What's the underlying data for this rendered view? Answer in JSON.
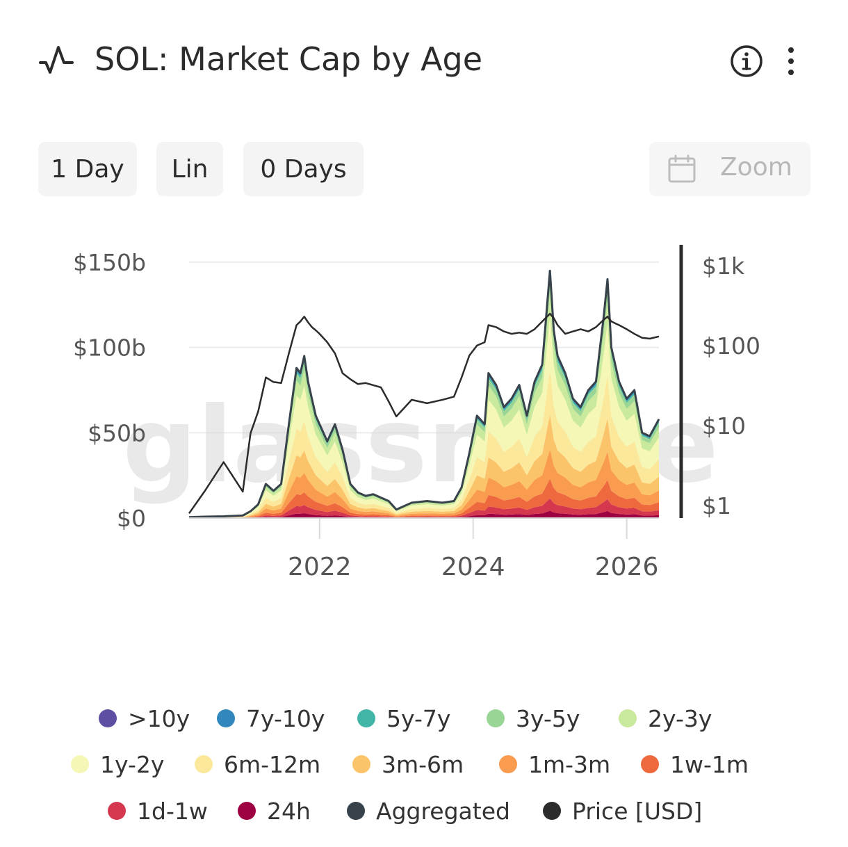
{
  "header": {
    "title": "SOL: Market Cap by Age",
    "icons": [
      "pulse-icon",
      "info-icon",
      "more-vertical-icon"
    ]
  },
  "toolbar": {
    "resolution": "1 Day",
    "scale": "Lin",
    "moving_average": "0 Days",
    "zoom_label": "Zoom",
    "zoom_icon": "calendar-icon"
  },
  "chart_data": {
    "type": "area",
    "title": "SOL: Market Cap by Age",
    "x_ticks": [
      "2022",
      "2024",
      "2026"
    ],
    "xlim": [
      2020.3,
      2026.42
    ],
    "y_left": {
      "label": "",
      "ticks": [
        "$0",
        "$50b",
        "$100b",
        "$150b"
      ],
      "tick_values": [
        0,
        50,
        100,
        150
      ],
      "ylim": [
        0,
        150
      ],
      "unit": "USD billions"
    },
    "y_right": {
      "label": "",
      "scale": "log",
      "ticks": [
        "$1",
        "$10",
        "$100",
        "$1k"
      ],
      "tick_values": [
        1,
        10,
        100,
        1000
      ],
      "ylim": [
        0.7,
        1100
      ]
    },
    "grid": true,
    "stacked": true,
    "watermark": "glassnode",
    "x": [
      2020.3,
      2020.5,
      2020.75,
      2021.0,
      2021.1,
      2021.2,
      2021.3,
      2021.4,
      2021.5,
      2021.6,
      2021.7,
      2021.75,
      2021.8,
      2021.85,
      2021.9,
      2021.95,
      2022.0,
      2022.1,
      2022.2,
      2022.3,
      2022.4,
      2022.5,
      2022.6,
      2022.7,
      2022.8,
      2022.9,
      2023.0,
      2023.2,
      2023.4,
      2023.6,
      2023.75,
      2023.85,
      2023.95,
      2024.05,
      2024.15,
      2024.2,
      2024.3,
      2024.4,
      2024.5,
      2024.6,
      2024.7,
      2024.8,
      2024.9,
      2025.0,
      2025.05,
      2025.1,
      2025.2,
      2025.3,
      2025.4,
      2025.5,
      2025.6,
      2025.7,
      2025.75,
      2025.8,
      2025.9,
      2026.0,
      2026.1,
      2026.2,
      2026.3,
      2026.42
    ],
    "series": [
      {
        "name": "Aggregated",
        "values": [
          0.5,
          0.8,
          1.0,
          1.5,
          4,
          8,
          20,
          16,
          20,
          55,
          88,
          85,
          95,
          80,
          70,
          60,
          55,
          45,
          55,
          40,
          20,
          15,
          13,
          14,
          12,
          10,
          5,
          9,
          10,
          9,
          10,
          18,
          38,
          60,
          55,
          85,
          78,
          65,
          70,
          78,
          60,
          80,
          90,
          145,
          110,
          95,
          85,
          70,
          65,
          75,
          80,
          118,
          140,
          100,
          80,
          70,
          75,
          50,
          48,
          58
        ]
      },
      {
        "name": "Price [USD]",
        "values": [
          0.8,
          1.5,
          3.5,
          1.5,
          8,
          15,
          40,
          35,
          34,
          80,
          180,
          200,
          230,
          195,
          170,
          155,
          140,
          110,
          80,
          45,
          38,
          33,
          34,
          32,
          30,
          20,
          13,
          21,
          19,
          21,
          23,
          40,
          75,
          100,
          110,
          180,
          170,
          150,
          140,
          145,
          140,
          160,
          200,
          250,
          220,
          180,
          140,
          150,
          160,
          150,
          170,
          210,
          230,
          200,
          180,
          160,
          140,
          125,
          122,
          130
        ]
      }
    ],
    "legend": {
      "placement": "bottom",
      "entries": [
        {
          "name": ">10y",
          "color": "#5e4fa2"
        },
        {
          "name": "7y-10y",
          "color": "#3288bd"
        },
        {
          "name": "5y-7y",
          "color": "#41b6a8"
        },
        {
          "name": "3y-5y",
          "color": "#99d594"
        },
        {
          "name": "2y-3y",
          "color": "#c9e99c"
        },
        {
          "name": "1y-2y",
          "color": "#f4f7b5"
        },
        {
          "name": "6m-12m",
          "color": "#fbe89a"
        },
        {
          "name": "3m-6m",
          "color": "#fcc46a"
        },
        {
          "name": "1m-3m",
          "color": "#f99c50"
        },
        {
          "name": "1w-1m",
          "color": "#ee6a3e"
        },
        {
          "name": "1d-1w",
          "color": "#d5384e"
        },
        {
          "name": "24h",
          "color": "#9e0142"
        },
        {
          "name": "Aggregated",
          "color": "#37424a"
        },
        {
          "name": "Price [USD]",
          "color": "#2b2b2b"
        }
      ]
    }
  }
}
